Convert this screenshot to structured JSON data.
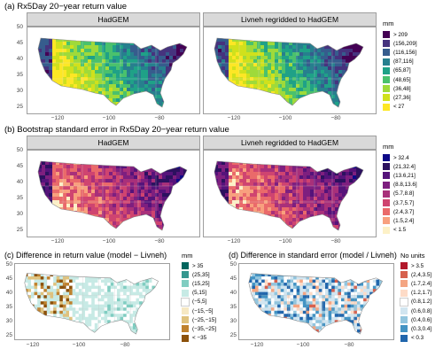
{
  "row_a": {
    "title": "(a) Rx5Day 20−year return value",
    "panels": [
      "HadGEM",
      "Livneh regridded to HadGEM"
    ],
    "y_ticks": [
      "50",
      "45",
      "40",
      "35",
      "30",
      "25"
    ],
    "x_ticks": [
      "−120",
      "−100",
      "−80"
    ],
    "legend": {
      "title": "mm",
      "items": [
        {
          "label": "> 209",
          "color": "#440154"
        },
        {
          "label": "(156,209]",
          "color": "#46337e"
        },
        {
          "label": "(116,156]",
          "color": "#365c8d"
        },
        {
          "label": "(87,116]",
          "color": "#277f8e"
        },
        {
          "label": "(65,87]",
          "color": "#1fa187"
        },
        {
          "label": "(48,65]",
          "color": "#4ac16d"
        },
        {
          "label": "(36,48]",
          "color": "#9fda3a"
        },
        {
          "label": "(27,36]",
          "color": "#d0e11c"
        },
        {
          "label": "< 27",
          "color": "#fde725"
        }
      ]
    }
  },
  "row_b": {
    "title": "(b) Bootstrap standard error in Rx5Day 20−year return value",
    "panels": [
      "HadGEM",
      "Livneh regridded to HadGEM"
    ],
    "y_ticks": [
      "50",
      "45",
      "40",
      "35",
      "30",
      "25"
    ],
    "x_ticks": [
      "−120",
      "−100",
      "−80"
    ],
    "legend": {
      "title": "mm",
      "items": [
        {
          "label": "> 32.4",
          "color": "#0d0887"
        },
        {
          "label": "(21,32.4]",
          "color": "#2c115f"
        },
        {
          "label": "(13.6,21]",
          "color": "#55137a"
        },
        {
          "label": "(8.8,13.6]",
          "color": "#7e1f7f"
        },
        {
          "label": "(5.7,8.8]",
          "color": "#a8307a"
        },
        {
          "label": "(3.7,5.7]",
          "color": "#cf4470"
        },
        {
          "label": "(2.4,3.7]",
          "color": "#ea6a6a"
        },
        {
          "label": "(1.5,2.4]",
          "color": "#f8a07e"
        },
        {
          "label": "< 1.5",
          "color": "#fdf1c7"
        }
      ]
    }
  },
  "row_c": {
    "title": "(c) Difference in return value (model − Livneh)",
    "y_ticks": [
      "50",
      "45",
      "40",
      "35",
      "30",
      "25"
    ],
    "x_ticks": [
      "−120",
      "−100",
      "−80"
    ],
    "legend": {
      "title": "mm",
      "items": [
        {
          "label": "> 35",
          "color": "#01665e"
        },
        {
          "label": "(25,35]",
          "color": "#35978f"
        },
        {
          "label": "(15,25]",
          "color": "#80cdc1"
        },
        {
          "label": "(5,15]",
          "color": "#c7eae5"
        },
        {
          "label": "(−5,5]",
          "color": "#ffffff"
        },
        {
          "label": "(−15,−5]",
          "color": "#f6e8c3"
        },
        {
          "label": "(−25,−15]",
          "color": "#dfc27d"
        },
        {
          "label": "(−35,−25]",
          "color": "#bf812d"
        },
        {
          "label": "< −35",
          "color": "#8c510a"
        }
      ]
    }
  },
  "row_d": {
    "title": "(d) Difference in standard error (model / Livneh)",
    "y_ticks": [
      "50",
      "45",
      "40",
      "35",
      "30",
      "25"
    ],
    "x_ticks": [
      "−120",
      "−100",
      "−80"
    ],
    "legend": {
      "title": "No units",
      "items": [
        {
          "label": "> 3.5",
          "color": "#b2182b"
        },
        {
          "label": "(2,4,3.5]",
          "color": "#d6604d"
        },
        {
          "label": "(1.7,2.4]",
          "color": "#f4a582"
        },
        {
          "label": "(1.2,1.7]",
          "color": "#fddbc7"
        },
        {
          "label": "(0.8,1.2]",
          "color": "#ffffff"
        },
        {
          "label": "(0.6,0.8]",
          "color": "#d1e5f0"
        },
        {
          "label": "(0.4,0.6]",
          "color": "#92c5de"
        },
        {
          "label": "(0.3,0.4]",
          "color": "#4393c3"
        },
        {
          "label": "< 0.3",
          "color": "#2166ac"
        }
      ]
    }
  }
}
